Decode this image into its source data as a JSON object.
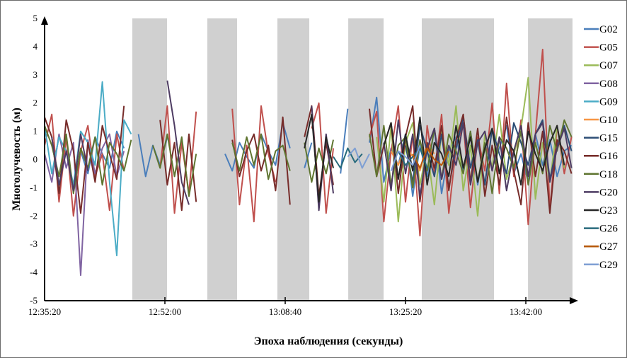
{
  "chart_data": {
    "type": "line",
    "title": "",
    "xlabel": "Эпоха наблюдения (секунды)",
    "ylabel": "Многолучевость (м)",
    "ylim": [
      -5,
      5
    ],
    "yticks": [
      5,
      4,
      3,
      2,
      1,
      0,
      -1,
      -2,
      -3,
      -4,
      -5
    ],
    "xlim_seconds_from_start": [
      0,
      4388
    ],
    "xticks": [
      {
        "seconds": 0,
        "label": "12:35:20"
      },
      {
        "seconds": 1000,
        "label": "12:52:00"
      },
      {
        "seconds": 2000,
        "label": "13:08:40"
      },
      {
        "seconds": 3000,
        "label": "13:25:20"
      },
      {
        "seconds": 4000,
        "label": "13:42:00"
      }
    ],
    "shaded_intervals_seconds": [
      [
        729,
        1018
      ],
      [
        1353,
        1600
      ],
      [
        1935,
        2200
      ],
      [
        2524,
        2818
      ],
      [
        3135,
        3735
      ],
      [
        4018,
        4388
      ]
    ],
    "shade_color": "#d0d0d0",
    "legend_position": "right",
    "x_step_seconds": 60,
    "series": [
      {
        "name": "G02",
        "color": "#4a7ebb",
        "start": 0,
        "values": [
          null,
          null,
          null,
          null,
          null,
          0.3,
          -0.5,
          0.8,
          0.2,
          -0.3,
          1.0,
          0.4,
          null,
          0.9,
          -0.6,
          0.5,
          -0.2,
          0.8,
          null,
          null,
          null,
          null,
          null,
          null,
          null,
          0.2,
          -0.4,
          0.6,
          0.1,
          -0.3,
          0.9,
          0.3,
          -0.2,
          1.3,
          0.4,
          null,
          -0.3,
          0.6,
          null,
          null,
          null,
          -0.5,
          1.8,
          null,
          null,
          0.6,
          2.2,
          -0.8,
          0.4,
          -0.2,
          0.9,
          -1.3,
          0.5,
          -0.6,
          1.1,
          -1.2,
          0.3,
          0.8,
          -0.4,
          1.0,
          -0.9,
          0.6,
          -0.3,
          0.4,
          1.2,
          -0.5,
          0.2,
          -0.8,
          0.9,
          -0.2,
          0.7,
          -0.6,
          0.3,
          0.5
        ]
      },
      {
        "name": "G05",
        "color": "#c0504d",
        "start": 0,
        "values": [
          0.5,
          1.6,
          -1.5,
          0.8,
          -2.0,
          0.3,
          1.2,
          -0.6,
          0.2,
          -1.8,
          0.9,
          -0.4,
          null,
          null,
          null,
          null,
          -0.3,
          1.9,
          -1.9,
          0.6,
          -1.2,
          1.7,
          null,
          null,
          null,
          null,
          1.8,
          -1.6,
          0.5,
          -2.2,
          1.9,
          0.2,
          -0.8,
          null,
          null,
          null,
          null,
          1.1,
          2.0,
          -1.9,
          0.4,
          null,
          null,
          null,
          null,
          0.8,
          1.7,
          -2.2,
          0.3,
          1.9,
          -1.5,
          0.9,
          -2.7,
          1.2,
          -0.5,
          1.6,
          -1.9,
          0.4,
          1.3,
          -1.7,
          0.8,
          -0.4,
          2.0,
          -1.2,
          2.7,
          -0.6,
          1.4,
          -2.3,
          0.9,
          3.9,
          -1.8,
          1.2,
          -0.5,
          0.8
        ]
      },
      {
        "name": "G07",
        "color": "#9bbb59",
        "start": 2760,
        "values": [
          0.8,
          -1.5,
          1.2,
          -2.2,
          0.6,
          1.3,
          -0.9,
          0.4,
          -1.6,
          1.0,
          -0.2,
          1.9,
          -1.1,
          0.5,
          -2.0,
          0.9,
          -0.3,
          1.6,
          -0.7,
          0.2,
          1.1,
          2.9,
          -1.4,
          0.6,
          -0.8,
          1.2,
          -0.3
        ]
      },
      {
        "name": "G08",
        "color": "#8064a2",
        "start": 0,
        "values": [
          0.2,
          -0.8,
          0.9,
          -0.3,
          0.6,
          -4.1,
          0.7,
          -0.5,
          0.4,
          0.9,
          -0.6,
          0.3
        ]
      },
      {
        "name": "G09",
        "color": "#4bacc6",
        "start": 0,
        "values": [
          1.2,
          -0.5,
          0.8,
          0.3,
          -0.9,
          1.0,
          0.6,
          -0.2,
          2.75,
          -0.8,
          -3.4,
          1.4,
          0.9
        ]
      },
      {
        "name": "G10",
        "color": "#f79646",
        "start": 2880,
        "values": [
          0.3,
          -0.2,
          0.5,
          0.1,
          -0.4,
          0.6,
          0.2
        ]
      },
      {
        "name": "G15",
        "color": "#2c4d75",
        "start": 3000,
        "values": [
          0.5,
          -0.8,
          1.2,
          0.3,
          -0.6,
          0.9,
          -1.0,
          0.4,
          1.5,
          -0.3,
          0.7,
          -0.9,
          1.1,
          0.2,
          -0.5,
          1.3,
          0.6,
          -0.2,
          0.9,
          1.4,
          -0.7,
          0.5,
          1.2,
          0.3
        ]
      },
      {
        "name": "G16",
        "color": "#772c2a",
        "start": 0,
        "values": [
          1.5,
          0.8,
          -1.2,
          1.4,
          0.3,
          -1.9,
          0.6,
          -0.8,
          1.2,
          0.2,
          -0.7,
          1.9,
          null,
          null,
          null,
          null,
          1.4,
          -0.9,
          0.6,
          -1.8,
          0.9,
          -1.5,
          null,
          null,
          null,
          null,
          0.7,
          -0.6,
          0.3,
          0.9,
          -0.4,
          0.5,
          -1.1,
          1.5,
          -1.6,
          null,
          0.8,
          1.9,
          -1.3,
          0.6,
          -0.9,
          null,
          null,
          null,
          null,
          1.8,
          -0.6,
          0.5,
          1.3,
          -1.2,
          0.8,
          1.9,
          -1.5,
          0.6,
          -0.3,
          1.2,
          -1.1,
          0.7,
          1.6,
          -0.8,
          1.1,
          -1.3,
          0.5,
          -0.9,
          1.5,
          -0.4,
          -1.6,
          1.3,
          -0.6,
          1.0,
          -1.9,
          0.7,
          0.3,
          -0.5
        ]
      },
      {
        "name": "G18",
        "color": "#5f7530",
        "start": 0,
        "values": [
          1.2,
          0.5,
          -0.6,
          0.9,
          -1.2,
          0.4,
          -0.3,
          0.8,
          -0.9,
          0.6,
          0.2,
          -0.4,
          0.7,
          null,
          null,
          0.5,
          -0.3,
          0.9,
          -0.6,
          0.8,
          -1.3,
          0.2,
          null,
          null,
          null,
          null,
          0.6,
          -0.4,
          0.8,
          -0.2,
          0.9,
          -0.7,
          0.3,
          0.5,
          -0.4,
          null,
          0.6,
          -0.8,
          0.4,
          -0.5,
          0.7,
          null,
          null,
          null,
          null,
          0.9,
          -0.6,
          1.2,
          -0.9,
          0.5,
          0.8,
          -1.0,
          0.7,
          -0.4,
          1.1,
          -0.7,
          0.9,
          0.3,
          -0.5,
          1.0,
          -0.8,
          0.6,
          -1.2,
          0.8,
          0.4,
          -0.3,
          1.0,
          -0.9,
          0.6,
          -0.5,
          1.2,
          0.3,
          1.4,
          0.8
        ]
      },
      {
        "name": "G20",
        "color": "#4d3b62",
        "start": 0,
        "values": [
          null,
          0.8,
          -0.9,
          0.3,
          -1.1,
          0.9,
          -0.4,
          null,
          null,
          null,
          null,
          null,
          null,
          null,
          null,
          null,
          null,
          2.8,
          1.2,
          -0.8,
          -1.6,
          null,
          null,
          null,
          null,
          null,
          null,
          null,
          null,
          null,
          null,
          null,
          null,
          null,
          null,
          null,
          null,
          1.9,
          -1.8,
          0.9,
          -1.2,
          null,
          null,
          null,
          null,
          null,
          null,
          0.6,
          -1.1,
          1.4,
          -0.5,
          0.9,
          -1.3,
          0.4,
          1.1,
          -0.7,
          0.5,
          -0.2,
          1.3,
          -0.9,
          0.6,
          1.0,
          -0.4,
          0.8,
          -1.1,
          0.3,
          1.2,
          -0.6,
          0.9,
          1.3,
          -0.8,
          0.4,
          1.1,
          -0.3
        ]
      },
      {
        "name": "G23",
        "color": "#262626",
        "start": 2160,
        "values": [
          0.4,
          1.6,
          -1.5,
          0.8,
          -0.3,
          null,
          null,
          null,
          null,
          null,
          null,
          0.5,
          1.3,
          -0.7,
          0.9,
          -0.4,
          1.5,
          -0.9,
          0.6,
          0.2,
          -0.6,
          1.2,
          -0.3,
          0.8,
          -0.8,
          0.4,
          1.1,
          -0.5,
          0.7,
          0.3,
          -0.9,
          1.0,
          0.2,
          -0.4,
          0.6,
          1.2,
          -0.2
        ]
      },
      {
        "name": "G26",
        "color": "#276a7c",
        "start": 2400,
        "values": [
          0.1,
          -0.3,
          0.4,
          -0.1,
          0.2,
          null,
          null,
          null,
          null,
          0.3,
          -0.2,
          0.1,
          0.4,
          -0.3
        ]
      },
      {
        "name": "G27",
        "color": "#b65708",
        "start": 3060,
        "values": [
          0.2,
          -0.3,
          0.4,
          0.0,
          -0.2,
          0.3
        ]
      },
      {
        "name": "G29",
        "color": "#7f9fd3",
        "start": 2520,
        "values": [
          0.1,
          0.4,
          -0.3,
          0.2,
          null,
          null,
          -0.4,
          0.3,
          0.1,
          -0.2,
          0.5
        ]
      }
    ]
  }
}
